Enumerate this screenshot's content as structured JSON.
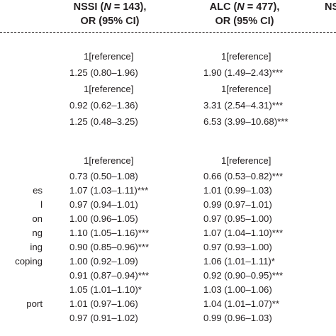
{
  "columns": [
    {
      "prefix": "NSSI (",
      "n_symbol": "N",
      "n_value": " = 143),",
      "line2": "OR (95% CI)"
    },
    {
      "prefix": "ALC (",
      "n_symbol": "N",
      "n_value": " = 477),",
      "line2": "OR (95% CI)"
    },
    {
      "prefix": "NS",
      "n_symbol": "",
      "n_value": "",
      "line2": ""
    }
  ],
  "rows": [
    {
      "stub": "",
      "nssi": "1[reference]",
      "alc": "1[reference]"
    },
    {
      "stub": "",
      "nssi": "1.25 (0.80–1.96)",
      "alc": "1.90 (1.49–2.43)***"
    },
    {
      "stub": "",
      "nssi": "1[reference]",
      "alc": "1[reference]"
    },
    {
      "stub": "",
      "nssi": "0.92 (0.62–1.36)",
      "alc": "3.31 (2.54–4.31)***"
    },
    {
      "stub": "",
      "nssi": "1.25 (0.48–3.25)",
      "alc": "6.53 (3.99–10.68)***"
    },
    {
      "stub": "",
      "nssi": "1[reference]",
      "alc": "1[reference]"
    },
    {
      "stub": "",
      "nssi": "0.73 (0.50–1.08)",
      "alc": "0.66 (0.53–0.82)***"
    },
    {
      "stub": "es",
      "nssi": "1.07 (1.03–1.11)***",
      "alc": "1.01 (0.99–1.03)"
    },
    {
      "stub": "l",
      "nssi": "0.97 (0.94–1.01)",
      "alc": "0.99 (0.97–1.01)"
    },
    {
      "stub": "on",
      "nssi": "1.00 (0.96–1.05)",
      "alc": "0.97 (0.95–1.00)"
    },
    {
      "stub": "ng",
      "nssi": "1.10 (1.05–1.16)***",
      "alc": "1.07 (1.04–1.10)***"
    },
    {
      "stub": "ing",
      "nssi": "0.90 (0.85–0.96)***",
      "alc": "0.97 (0.93–1.00)"
    },
    {
      "stub": "coping",
      "nssi": "1.00 (0.92–1.09)",
      "alc": "1.06 (1.01–1.11)*"
    },
    {
      "stub": "",
      "nssi": "0.91 (0.87–0.94)***",
      "alc": "0.92 (0.90–0.95)***"
    },
    {
      "stub": "",
      "nssi": "1.05 (1.01–1.10)*",
      "alc": "1.03 (1.00–1.06)"
    },
    {
      "stub": "port",
      "nssi": "1.01 (0.97–1.06)",
      "alc": "1.04 (1.01–1.07)**"
    },
    {
      "stub": "",
      "nssi": "0.97 (0.91–1.02)",
      "alc": "0.99 (0.96–1.03)"
    }
  ]
}
